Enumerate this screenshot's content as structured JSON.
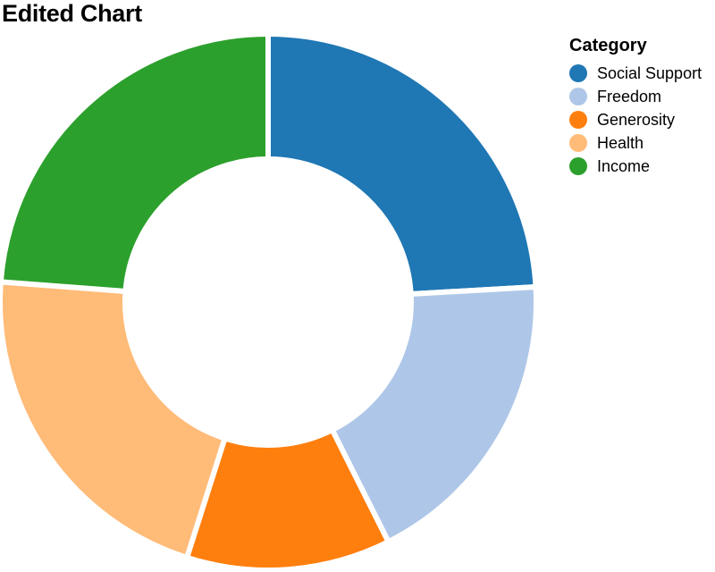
{
  "chart_data": {
    "type": "pie",
    "title": "Edited Chart",
    "donut": true,
    "legend": {
      "title": "Category",
      "placement": "right"
    },
    "series": [
      {
        "name": "Social Support",
        "value": 24.1,
        "color": "#1f77b4"
      },
      {
        "name": "Freedom",
        "value": 18.5,
        "color": "#aec7e8"
      },
      {
        "name": "Generosity",
        "value": 12.3,
        "color": "#ff7f0e"
      },
      {
        "name": "Health",
        "value": 21.3,
        "color": "#ffbb78"
      },
      {
        "name": "Income",
        "value": 23.8,
        "color": "#2ca02c"
      }
    ]
  }
}
